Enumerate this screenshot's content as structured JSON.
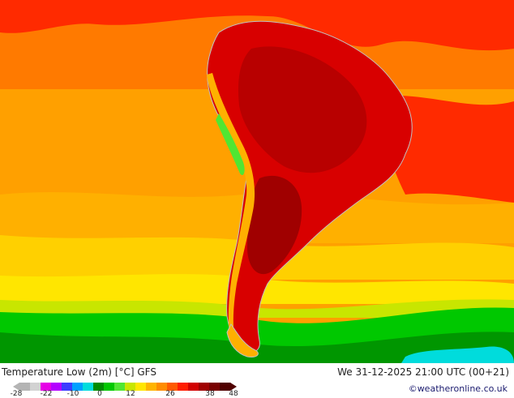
{
  "map": {
    "title": "Temperature Low (2m) [°C] GFS",
    "datetime": "We 31-12-2025 21:00 UTC (00+21)",
    "credit": "©weatheronline.co.uk"
  },
  "colorbar": {
    "ticks": [
      "-28",
      "-22",
      "-10",
      "0",
      "12",
      "26",
      "38",
      "48"
    ],
    "colors": [
      "#b4b4b4",
      "#d2d2d2",
      "#e600e6",
      "#b400ff",
      "#3c3cff",
      "#00a0ff",
      "#00dcdc",
      "#008c00",
      "#00c800",
      "#50e632",
      "#c8e600",
      "#ffe600",
      "#ffb400",
      "#ff8c00",
      "#ff5a00",
      "#ff1e00",
      "#d20000",
      "#a00000",
      "#780000",
      "#500000"
    ]
  },
  "palette": {
    "ocean_hot": "#ff8c00",
    "ocean_warm": "#ffa000",
    "tropics": "#ff2a00",
    "interior": "#d80000",
    "interior_dark": "#a80000",
    "cold_south": "#00c800",
    "cold_deep": "#009600",
    "cyan_patch": "#00dcdc",
    "border": "#c0c0c0"
  }
}
